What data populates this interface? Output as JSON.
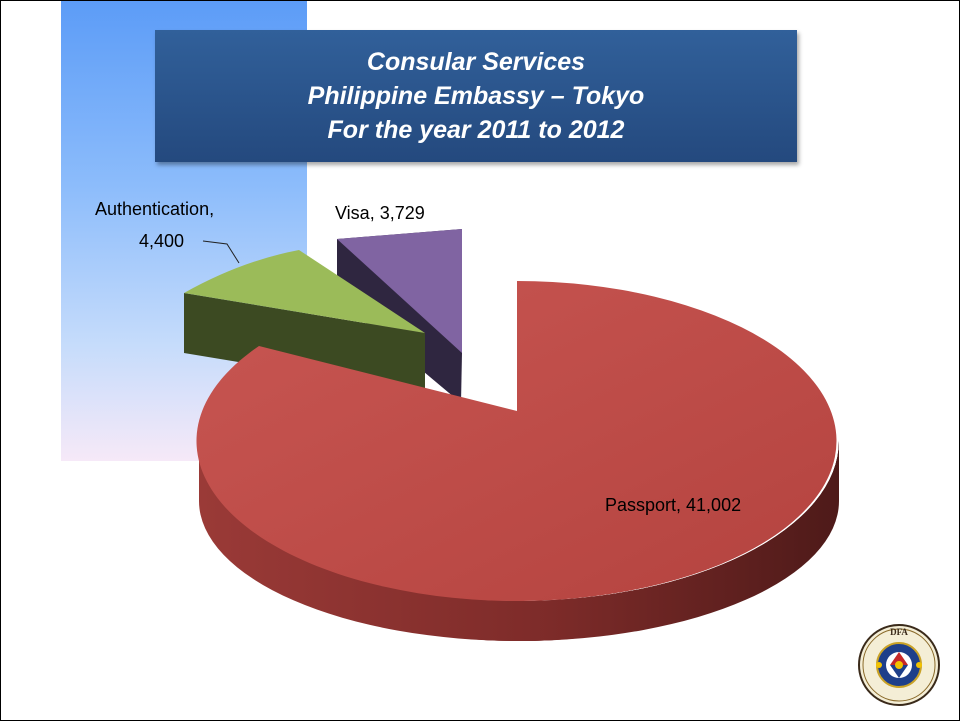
{
  "title": {
    "line1": "Consular Services",
    "line2": "Philippine Embassy – Tokyo",
    "line3": "For the year 2011 to 2012"
  },
  "chart_data": {
    "type": "pie",
    "style": "3d-exploded",
    "title": "Consular Services Philippine Embassy – Tokyo For the year 2011 to 2012",
    "categories": [
      "Passport",
      "Authentication",
      "Visa"
    ],
    "values": [
      41002,
      4400,
      3729
    ],
    "data_labels": [
      "Passport, 41,002",
      "Authentication, 4,400",
      "Visa, 3,729"
    ],
    "colors": [
      "#c0504d",
      "#9bbb59",
      "#8064a2"
    ],
    "legend": "none"
  },
  "labels": {
    "passport": "Passport, 41,002",
    "authentication_line1": "Authentication,",
    "authentication_line2": "4,400",
    "visa": "Visa, 3,729"
  },
  "logo": {
    "text": "DEPARTMENT OF FOREIGN AFFAIRS",
    "subtext": "REPUBLIC OF THE PHILIPPINES",
    "icon": "dfa-seal-icon"
  }
}
